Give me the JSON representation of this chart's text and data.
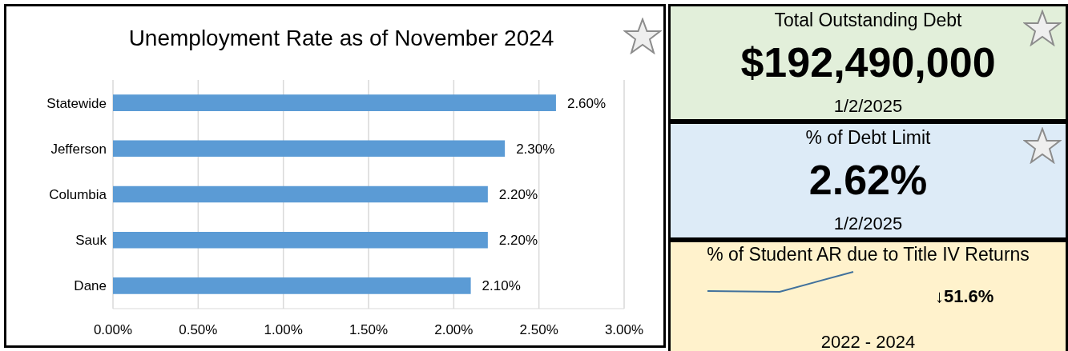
{
  "chart_data": [
    {
      "type": "bar",
      "orientation": "horizontal",
      "title": "Unemployment Rate as of November 2024",
      "categories": [
        "Statewide",
        "Jefferson",
        "Columbia",
        "Sauk",
        "Dane"
      ],
      "values": [
        2.6,
        2.3,
        2.2,
        2.2,
        2.1
      ],
      "color": "#5b9bd5",
      "value_labels": [
        "2.60%",
        "2.30%",
        "2.20%",
        "2.20%",
        "2.10%"
      ],
      "xlim": [
        0,
        3
      ],
      "xticks": [
        {
          "value": 0,
          "label": "0.00%"
        },
        {
          "value": 0.5,
          "label": "0.50%"
        },
        {
          "value": 1,
          "label": "1.00%"
        },
        {
          "value": 1.5,
          "label": "1.50%"
        },
        {
          "value": 2,
          "label": "2.00%"
        },
        {
          "value": 2.5,
          "label": "2.50%"
        },
        {
          "value": 3,
          "label": "3.00%"
        }
      ],
      "grid": "x"
    },
    {
      "type": "other",
      "title": "Total Outstanding Debt",
      "annotations": [
        "$192,490,000",
        "1/2/2025"
      ]
    },
    {
      "type": "other",
      "title": "% of Debt Limit",
      "annotations": [
        "2.62%",
        "1/2/2025"
      ]
    },
    {
      "type": "other",
      "title": "% of Student AR due to Title IV Returns",
      "annotations": [
        "↓51.6%",
        "2022 - 2024"
      ]
    }
  ]
}
